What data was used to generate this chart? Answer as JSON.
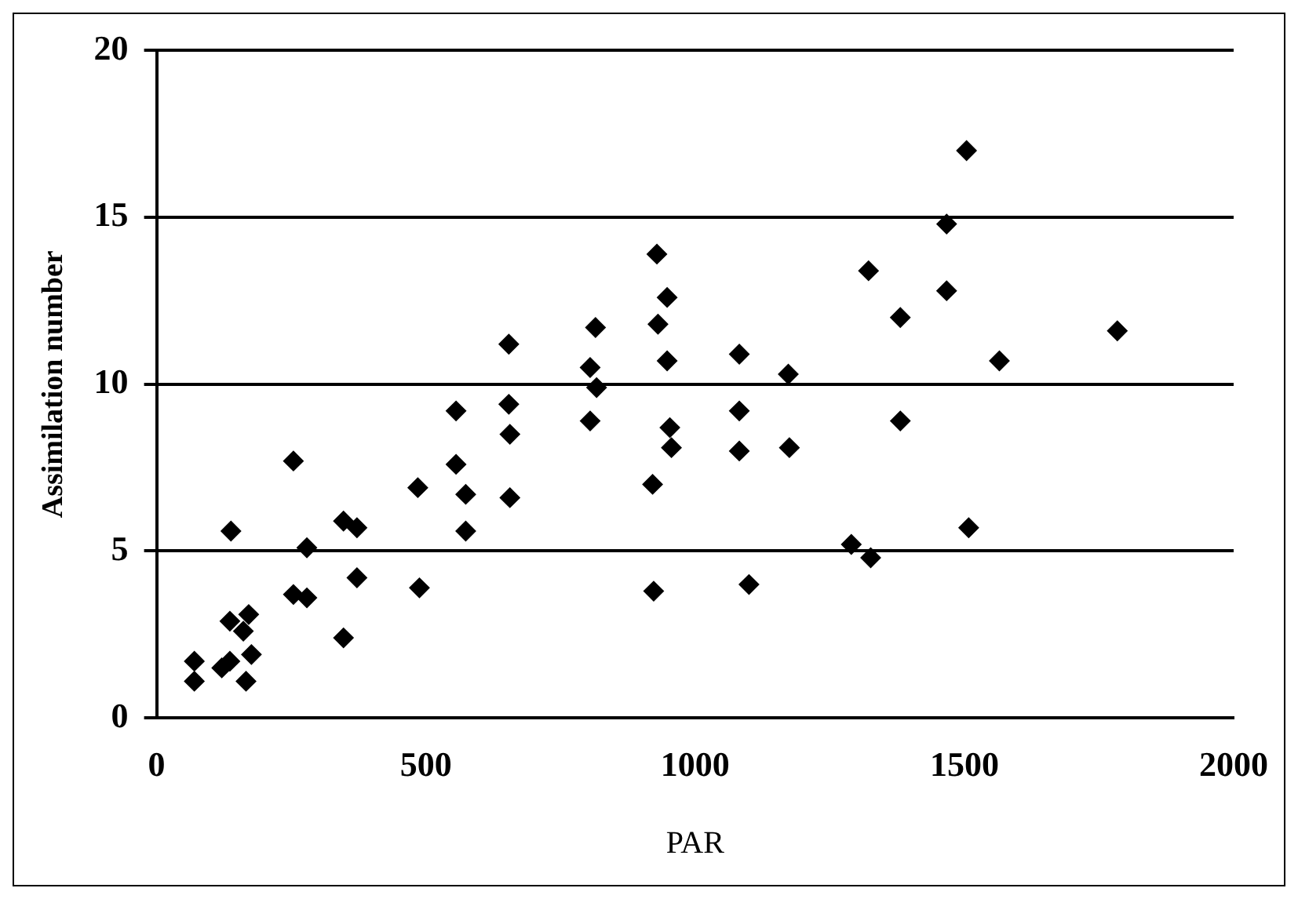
{
  "chart_data": {
    "type": "scatter",
    "xlabel": "PAR",
    "ylabel": "Assimilation number",
    "x": [
      70,
      70,
      121,
      136,
      138,
      136,
      171,
      161,
      176,
      166,
      254,
      254,
      279,
      279,
      347,
      372,
      372,
      347,
      485,
      488,
      556,
      556,
      574,
      574,
      929,
      948,
      931,
      948,
      953,
      956,
      921,
      923,
      815,
      805,
      817,
      805,
      654,
      654,
      656,
      656,
      1504,
      1467,
      1467,
      1381,
      1322,
      1082,
      1173,
      1082,
      1082,
      1175,
      1381,
      1290,
      1326,
      1508,
      1100,
      1784,
      1565
    ],
    "values": [
      1.7,
      1.1,
      1.5,
      1.7,
      5.6,
      2.9,
      3.1,
      2.6,
      1.9,
      1.1,
      7.7,
      3.7,
      3.6,
      5.1,
      5.9,
      5.7,
      4.2,
      2.4,
      6.9,
      3.9,
      9.2,
      7.6,
      6.7,
      5.6,
      13.9,
      12.6,
      11.8,
      10.7,
      8.7,
      8.1,
      7.0,
      3.8,
      11.7,
      10.5,
      9.9,
      8.9,
      11.2,
      9.4,
      8.5,
      6.6,
      17.0,
      14.8,
      12.8,
      12.0,
      13.4,
      10.9,
      10.3,
      9.2,
      8.0,
      8.1,
      8.9,
      5.2,
      4.8,
      5.7,
      4.0,
      11.6,
      10.7
    ],
    "color": "#000000",
    "marker": "diamond",
    "xlim": [
      0,
      2000
    ],
    "xticks": [
      0,
      500,
      1000,
      1500,
      2000
    ],
    "ylim": [
      0,
      20
    ],
    "yticks": [
      0,
      5,
      10,
      15,
      20
    ],
    "grid": "y",
    "legend": false
  }
}
